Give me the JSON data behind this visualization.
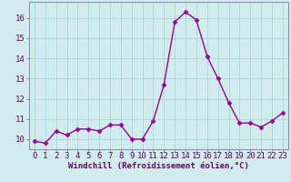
{
  "x": [
    0,
    1,
    2,
    3,
    4,
    5,
    6,
    7,
    8,
    9,
    10,
    11,
    12,
    13,
    14,
    15,
    16,
    17,
    18,
    19,
    20,
    21,
    22,
    23
  ],
  "y": [
    9.9,
    9.8,
    10.4,
    10.2,
    10.5,
    10.5,
    10.4,
    10.7,
    10.7,
    10.0,
    10.0,
    10.9,
    12.7,
    15.8,
    16.3,
    15.9,
    14.1,
    13.0,
    11.8,
    10.8,
    10.8,
    10.6,
    10.9,
    11.3
  ],
  "line_color": "#990099",
  "marker": "D",
  "marker_size": 2.5,
  "bg_color": "#d0ecec",
  "grid_color": "#b0d8d8",
  "ylabel_ticks": [
    10,
    11,
    12,
    13,
    14,
    15,
    16
  ],
  "ylim": [
    9.5,
    16.8
  ],
  "xlim": [
    -0.5,
    23.5
  ],
  "xlabel": "Windchill (Refroidissement éolien,°C)",
  "xlabel_fontsize": 6.5,
  "tick_fontsize": 6.5,
  "line_width": 1.0,
  "spine_color": "#8888aa"
}
